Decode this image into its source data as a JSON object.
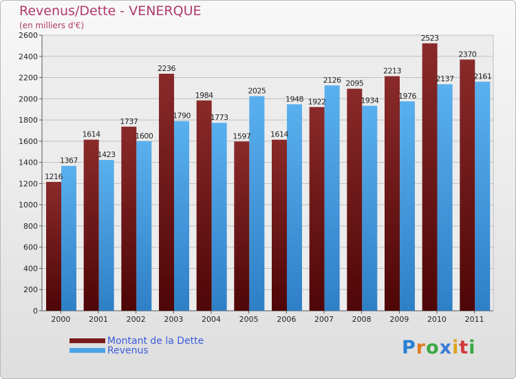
{
  "header": {
    "title": "Revenus/Dette - VENERQUE",
    "subtitle": "(en milliers d'€)"
  },
  "colors": {
    "dette": "#7a1c1c",
    "revenus": "#4aa3e8",
    "title": "#b03a6a",
    "legend_text": "#3b5bdb"
  },
  "legend": {
    "items": [
      {
        "label": "Montant de la Dette",
        "color": "#7a1c1c"
      },
      {
        "label": "Revenus",
        "color": "#4aa3e8"
      }
    ]
  },
  "logo": {
    "text": "Proxiti"
  },
  "chart_data": {
    "type": "bar",
    "title": "Revenus/Dette - VENERQUE",
    "subtitle": "(en milliers d'€)",
    "categories": [
      "2000",
      "2001",
      "2002",
      "2003",
      "2004",
      "2005",
      "2006",
      "2007",
      "2008",
      "2009",
      "2010",
      "2011"
    ],
    "series": [
      {
        "name": "Montant de la Dette",
        "values": [
          1216,
          1614,
          1737,
          2236,
          1984,
          1597,
          1614,
          1922,
          2095,
          2213,
          2523,
          2370
        ]
      },
      {
        "name": "Revenus",
        "values": [
          1367,
          1423,
          1600,
          1790,
          1773,
          2025,
          1948,
          2126,
          1934,
          1976,
          2137,
          2161
        ]
      }
    ],
    "ylim": [
      0,
      2600
    ],
    "yticks": [
      0,
      200,
      400,
      600,
      800,
      1000,
      1200,
      1400,
      1600,
      1800,
      2000,
      2200,
      2400,
      2600
    ],
    "grid": true,
    "legend_position": "bottom-left"
  }
}
